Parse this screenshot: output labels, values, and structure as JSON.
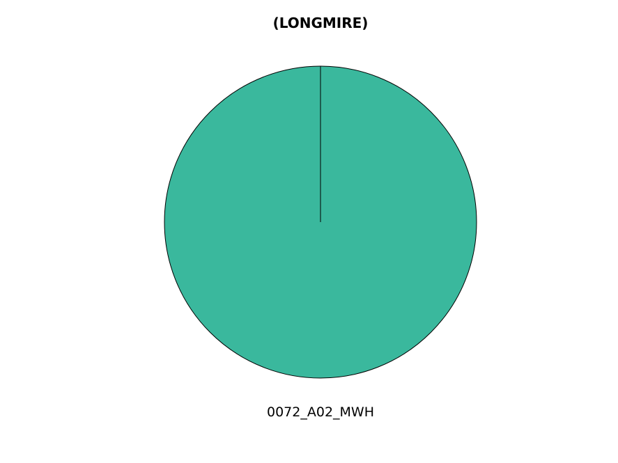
{
  "chart_data": {
    "type": "pie",
    "title": "(LONGMIRE)",
    "categories": [
      "0072_A02_MWH"
    ],
    "values": [
      100
    ],
    "colors": [
      "#3ab89d"
    ],
    "edge_color": "#000000"
  }
}
